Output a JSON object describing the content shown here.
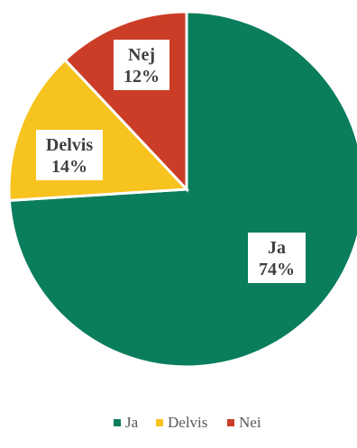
{
  "chart_data": {
    "type": "pie",
    "title": "",
    "slices": [
      {
        "name": "Ja",
        "value": 74,
        "label": "74%",
        "color": "#0a7d5c"
      },
      {
        "name": "Delvis",
        "value": 14,
        "label": "14%",
        "color": "#f7c31e"
      },
      {
        "name": "Nej",
        "value": 12,
        "label": "12%",
        "color": "#cc3d27"
      }
    ],
    "legend": {
      "position": "bottom",
      "entries": [
        "Ja",
        "Delvis",
        "Nei"
      ]
    }
  }
}
